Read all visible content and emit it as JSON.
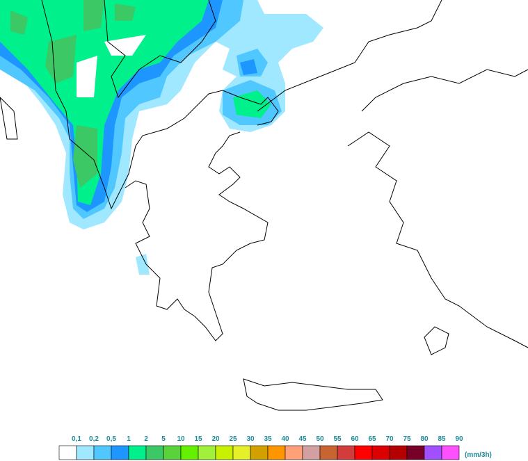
{
  "legend": {
    "labels": [
      "0,1",
      "0,2",
      "0,5",
      "1",
      "2",
      "5",
      "10",
      "15",
      "20",
      "25",
      "30",
      "35",
      "40",
      "45",
      "50",
      "55",
      "60",
      "65",
      "70",
      "75",
      "80",
      "85",
      "90"
    ],
    "colors": [
      "#ffffff",
      "#a0e8ff",
      "#50c8ff",
      "#1e96ff",
      "#00f08c",
      "#3cc864",
      "#5ad23c",
      "#64f000",
      "#a0f03c",
      "#c8f000",
      "#e6f028",
      "#d2a000",
      "#ff9600",
      "#ffa078",
      "#d2a0a0",
      "#c86432",
      "#d23c3c",
      "#ff0000",
      "#dc0000",
      "#b40000",
      "#780028",
      "#a050ff",
      "#ff50ff"
    ],
    "unit": "(mm/3h)"
  }
}
